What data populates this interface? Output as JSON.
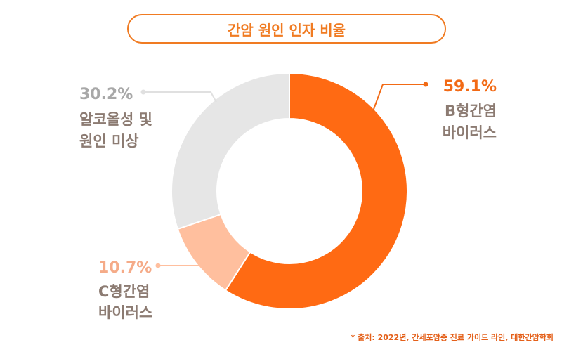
{
  "chart_data": {
    "type": "pie",
    "title": "간암 원인 인자 비율",
    "slices": [
      {
        "label_line1": "B형간염",
        "label_line2": "바이러스",
        "value": 59.1,
        "pct_label": "59.1%",
        "color": "#ff6a13",
        "pct_color": "#f26a15",
        "text_color": "#8c7b72"
      },
      {
        "label_line1": "C형간염",
        "label_line2": "바이러스",
        "value": 10.7,
        "pct_label": "10.7%",
        "color": "#ffbf9e",
        "pct_color": "#f5ab88",
        "text_color": "#8c7b72"
      },
      {
        "label_line1": "알코올성 및",
        "label_line2": "원인 미상",
        "value": 30.2,
        "pct_label": "30.2%",
        "color": "#e6e6e6",
        "pct_color": "#a8a8a8",
        "text_color": "#8c7b72"
      }
    ],
    "source": "* 출처: 2022년, 간세포암종 진료 가이드 라인, 대한간암학회"
  }
}
